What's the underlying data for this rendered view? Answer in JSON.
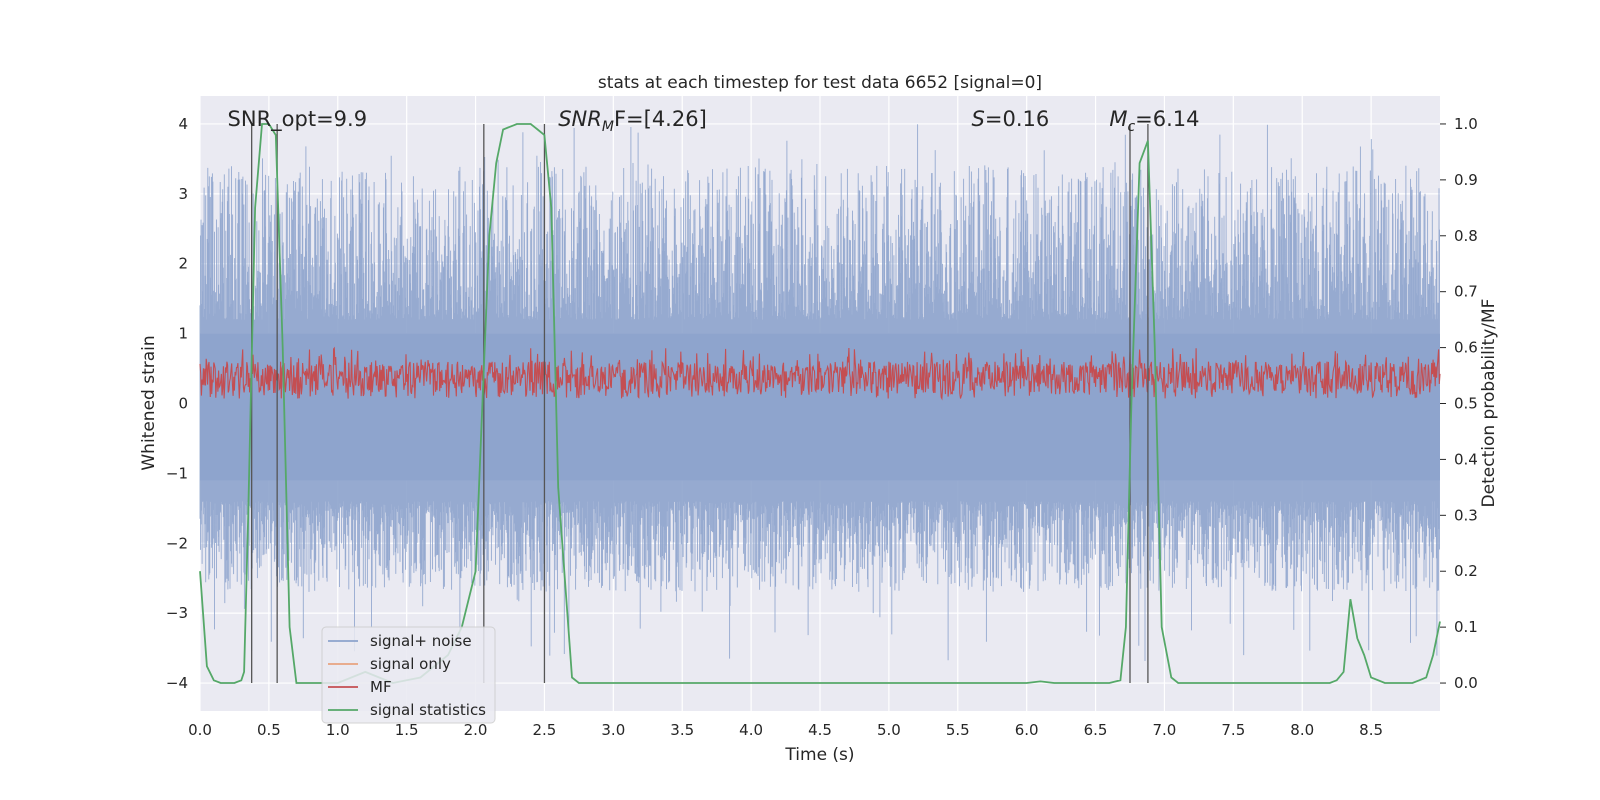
{
  "chart_data": {
    "type": "line",
    "title": "stats at each timestep for test data 6652 [signal=0]",
    "xlabel": "Time (s)",
    "ylabel": "Whitened strain",
    "ylabel_right": "Detection probability/MF",
    "xlim": [
      0.0,
      9.0
    ],
    "ylim": [
      -4.4,
      4.4
    ],
    "ylim_right": [
      -0.05,
      1.05
    ],
    "xticks": [
      "0.0",
      "0.5",
      "1.0",
      "1.5",
      "2.0",
      "2.5",
      "3.0",
      "3.5",
      "4.0",
      "4.5",
      "5.0",
      "5.5",
      "6.0",
      "6.5",
      "7.0",
      "7.5",
      "8.0",
      "8.5"
    ],
    "yticks": [
      "4",
      "3",
      "2",
      "1",
      "0",
      "−1",
      "−2",
      "−3",
      "−4"
    ],
    "yticks_right": [
      "1.0",
      "0.9",
      "0.8",
      "0.7",
      "0.6",
      "0.5",
      "0.4",
      "0.3",
      "0.2",
      "0.1",
      "0.0"
    ],
    "grid": true,
    "legend_position": "lower-left",
    "annotations": [
      {
        "text": "SNR_opt=9.9",
        "x": 0.2,
        "y": 4.0
      },
      {
        "text": "SNRₘF=[4.26]",
        "x": 2.6,
        "y": 4.0,
        "base": "SNR",
        "sub": "M",
        "rest": "F=[4.26]"
      },
      {
        "text": "S=0.16",
        "x": 5.6,
        "y": 4.0,
        "base": "S",
        "rest": "=0.16"
      },
      {
        "text": "Mᴄ=6.14",
        "x": 6.6,
        "y": 4.0,
        "base": "M",
        "sub": "c",
        "rest": "=6.14"
      }
    ],
    "vertical_lines": [
      0.375,
      0.56,
      2.06,
      2.5,
      6.75,
      6.88
    ],
    "series": [
      {
        "name": "signal+ noise",
        "color": "#8da3cc",
        "kind": "noise",
        "envelope_max": 4.0,
        "envelope_min": -3.7
      },
      {
        "name": "signal only",
        "color": "#e8a37f",
        "kind": "flat",
        "values_note": ""
      },
      {
        "name": "MF",
        "color": "#c44e52",
        "kind": "mf",
        "band": [
          0.05,
          0.85
        ]
      },
      {
        "name": "signal statistics",
        "color": "#55a868",
        "kind": "prob",
        "x": [
          0.0,
          0.05,
          0.1,
          0.15,
          0.2,
          0.25,
          0.3,
          0.32,
          0.35,
          0.4,
          0.45,
          0.5,
          0.55,
          0.6,
          0.65,
          0.7,
          0.8,
          0.9,
          1.0,
          1.2,
          1.4,
          1.6,
          1.8,
          1.9,
          2.0,
          2.05,
          2.1,
          2.15,
          2.2,
          2.3,
          2.4,
          2.45,
          2.5,
          2.55,
          2.6,
          2.7,
          2.75,
          3.0,
          4.0,
          5.0,
          6.0,
          6.1,
          6.2,
          6.4,
          6.6,
          6.68,
          6.72,
          6.76,
          6.82,
          6.88,
          6.93,
          6.98,
          7.05,
          7.1,
          7.5,
          8.0,
          8.2,
          8.25,
          8.3,
          8.35,
          8.4,
          8.45,
          8.5,
          8.6,
          8.7,
          8.8,
          8.85,
          8.9,
          8.95,
          9.0
        ],
        "y": [
          0.2,
          0.03,
          0.005,
          0.0,
          0.0,
          0.0,
          0.005,
          0.02,
          0.3,
          0.85,
          1.0,
          1.0,
          0.98,
          0.6,
          0.1,
          0.0,
          0.0,
          0.0,
          0.0,
          0.02,
          0.0,
          0.01,
          0.05,
          0.1,
          0.2,
          0.5,
          0.8,
          0.93,
          0.99,
          1.0,
          1.0,
          0.99,
          0.98,
          0.85,
          0.35,
          0.01,
          0.0,
          0.0,
          0.0,
          0.0,
          0.0,
          0.003,
          0.0,
          0.0,
          0.0,
          0.005,
          0.1,
          0.5,
          0.93,
          0.97,
          0.6,
          0.1,
          0.01,
          0.0,
          0.0,
          0.0,
          0.0,
          0.005,
          0.02,
          0.15,
          0.08,
          0.05,
          0.01,
          0.0,
          0.0,
          0.0,
          0.005,
          0.01,
          0.05,
          0.11
        ]
      }
    ]
  }
}
